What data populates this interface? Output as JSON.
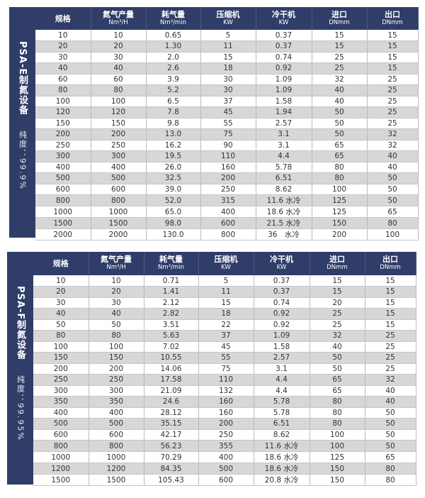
{
  "headers": [
    {
      "label": "规格",
      "unit": ""
    },
    {
      "label": "氮气产量",
      "unit": "Nm³/H"
    },
    {
      "label": "耗气量",
      "unit": "Nm³/min"
    },
    {
      "label": "压缩机",
      "unit": "KW"
    },
    {
      "label": "冷干机",
      "unit": "KW"
    },
    {
      "label": "进口",
      "unit": "DNmm"
    },
    {
      "label": "出口",
      "unit": "DNmm"
    }
  ],
  "colors": {
    "header": "#2f3d68",
    "stripe": "#d9d6d8"
  },
  "tables": [
    {
      "title": "PSA-E制氮设备",
      "purity": "纯度：99.9%",
      "rows": [
        [
          "10",
          "10",
          "0.65",
          "5",
          "0.37",
          "15",
          "15"
        ],
        [
          "20",
          "20",
          "1.30",
          "11",
          "0.37",
          "15",
          "15"
        ],
        [
          "30",
          "30",
          "2.0",
          "15",
          "0.74",
          "25",
          "15"
        ],
        [
          "40",
          "40",
          "2.6",
          "18",
          "0.92",
          "25",
          "15"
        ],
        [
          "60",
          "60",
          "3.9",
          "30",
          "1.09",
          "32",
          "25"
        ],
        [
          "80",
          "80",
          "5.2",
          "30",
          "1.09",
          "40",
          "25"
        ],
        [
          "100",
          "100",
          "6.5",
          "37",
          "1.58",
          "40",
          "25"
        ],
        [
          "120",
          "120",
          "7.8",
          "45",
          "1.94",
          "50",
          "25"
        ],
        [
          "150",
          "150",
          "9.8",
          "55",
          "2.57",
          "50",
          "25"
        ],
        [
          "200",
          "200",
          "13.0",
          "75",
          "3.1",
          "50",
          "32"
        ],
        [
          "250",
          "250",
          "16.2",
          "90",
          "3.1",
          "65",
          "32"
        ],
        [
          "300",
          "300",
          "19.5",
          "110",
          "4.4",
          "65",
          "40"
        ],
        [
          "400",
          "400",
          "26.0",
          "160",
          "5.78",
          "80",
          "40"
        ],
        [
          "500",
          "500",
          "32.5",
          "200",
          "6.51",
          "80",
          "50"
        ],
        [
          "600",
          "600",
          "39.0",
          "250",
          "8.62",
          "100",
          "50"
        ],
        [
          "800",
          "800",
          "52.0",
          "315",
          "11.6 水冷",
          "125",
          "50"
        ],
        [
          "1000",
          "1000",
          "65.0",
          "400",
          "18.6 水冷",
          "125",
          "65"
        ],
        [
          "1500",
          "1500",
          "98.0",
          "600",
          "21.5 水冷",
          "150",
          "80"
        ],
        [
          "2000",
          "2000",
          "130.0",
          "800",
          "36　水冷",
          "200",
          "100"
        ]
      ]
    },
    {
      "title": "PSA-F制氮设备",
      "purity": "纯度：99.95%",
      "rows": [
        [
          "10",
          "10",
          "0.71",
          "5",
          "0.37",
          "15",
          "15"
        ],
        [
          "20",
          "20",
          "1.41",
          "11",
          "0.37",
          "15",
          "15"
        ],
        [
          "30",
          "30",
          "2.12",
          "15",
          "0.74",
          "20",
          "15"
        ],
        [
          "40",
          "40",
          "2.82",
          "18",
          "0.92",
          "25",
          "15"
        ],
        [
          "50",
          "50",
          "3.51",
          "22",
          "0.92",
          "25",
          "15"
        ],
        [
          "80",
          "80",
          "5.63",
          "37",
          "1.09",
          "32",
          "25"
        ],
        [
          "100",
          "100",
          "7.02",
          "45",
          "1.58",
          "40",
          "25"
        ],
        [
          "150",
          "150",
          "10.55",
          "55",
          "2.57",
          "50",
          "25"
        ],
        [
          "200",
          "200",
          "14.06",
          "75",
          "3.1",
          "50",
          "25"
        ],
        [
          "250",
          "250",
          "17.58",
          "110",
          "4.4",
          "65",
          "32"
        ],
        [
          "300",
          "300",
          "21.09",
          "132",
          "4.4",
          "65",
          "40"
        ],
        [
          "350",
          "350",
          "24.6",
          "160",
          "5.78",
          "80",
          "40"
        ],
        [
          "400",
          "400",
          "28.12",
          "160",
          "5.78",
          "80",
          "50"
        ],
        [
          "500",
          "500",
          "35.15",
          "200",
          "6.51",
          "80",
          "50"
        ],
        [
          "600",
          "600",
          "42.17",
          "250",
          "8.62",
          "100",
          "50"
        ],
        [
          "800",
          "800",
          "56.23",
          "355",
          "11.6 水冷",
          "100",
          "50"
        ],
        [
          "1000",
          "1000",
          "70.29",
          "400",
          "18.6 水冷",
          "125",
          "65"
        ],
        [
          "1200",
          "1200",
          "84.35",
          "500",
          "18.6 水冷",
          "150",
          "80"
        ],
        [
          "1500",
          "1500",
          "105.43",
          "600",
          "20.8 水冷",
          "150",
          "80"
        ]
      ]
    }
  ]
}
